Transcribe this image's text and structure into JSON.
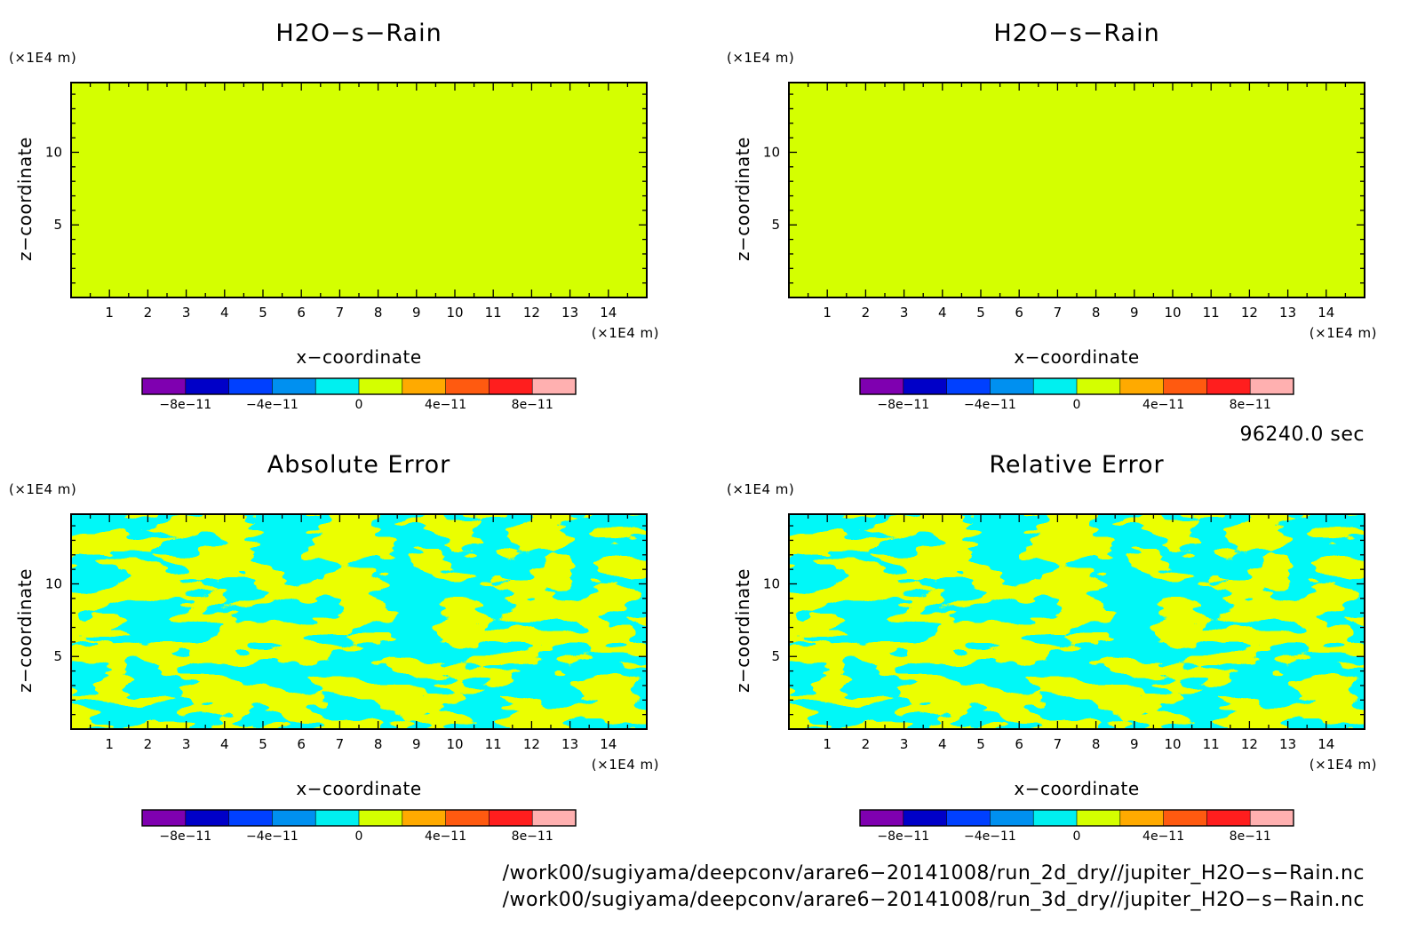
{
  "chart_data": [
    {
      "type": "heatmap",
      "title": "H2O−s−Rain",
      "xlabel": "x−coordinate",
      "ylabel": "z−coordinate",
      "x_unit": "(×1E4 m)",
      "y_unit": "(×1E4 m)",
      "xlim": [
        0,
        15
      ],
      "ylim": [
        0,
        14.8
      ],
      "x_ticks": [
        "1",
        "2",
        "3",
        "4",
        "5",
        "6",
        "7",
        "8",
        "9",
        "10",
        "11",
        "12",
        "13",
        "14"
      ],
      "y_ticks": [
        "5",
        "10"
      ],
      "field": "uniform",
      "field_value": 0,
      "colorbar": {
        "colors": [
          "#7f00b0",
          "#0000c8",
          "#0040ff",
          "#0090f0",
          "#00f0f0",
          "#d4ff00",
          "#ffaa00",
          "#ff5a10",
          "#ff1e1e",
          "#ffb0b0"
        ],
        "bounds": [
          -1e-10,
          1e-10
        ],
        "labels": [
          "−8e−11",
          "−4e−11",
          "0",
          "4e−11",
          "8e−11"
        ]
      }
    },
    {
      "type": "heatmap",
      "title": "H2O−s−Rain",
      "xlabel": "x−coordinate",
      "ylabel": "z−coordinate",
      "x_unit": "(×1E4 m)",
      "y_unit": "(×1E4 m)",
      "xlim": [
        0,
        15
      ],
      "ylim": [
        0,
        14.8
      ],
      "x_ticks": [
        "1",
        "2",
        "3",
        "4",
        "5",
        "6",
        "7",
        "8",
        "9",
        "10",
        "11",
        "12",
        "13",
        "14"
      ],
      "y_ticks": [
        "5",
        "10"
      ],
      "field": "uniform",
      "field_value": 0,
      "colorbar": {
        "colors": [
          "#7f00b0",
          "#0000c8",
          "#0040ff",
          "#0090f0",
          "#00f0f0",
          "#d4ff00",
          "#ffaa00",
          "#ff5a10",
          "#ff1e1e",
          "#ffb0b0"
        ],
        "bounds": [
          -1e-10,
          1e-10
        ],
        "labels": [
          "−8e−11",
          "−4e−11",
          "0",
          "4e−11",
          "8e−11"
        ]
      }
    },
    {
      "type": "heatmap",
      "title": "Absolute Error",
      "xlabel": "x−coordinate",
      "ylabel": "z−coordinate",
      "x_unit": "(×1E4 m)",
      "y_unit": "(×1E4 m)",
      "xlim": [
        0,
        15
      ],
      "ylim": [
        0,
        14.8
      ],
      "x_ticks": [
        "1",
        "2",
        "3",
        "4",
        "5",
        "6",
        "7",
        "8",
        "9",
        "10",
        "11",
        "12",
        "13",
        "14"
      ],
      "y_ticks": [
        "5",
        "10"
      ],
      "field": "noise",
      "field_values": [
        0,
        -1e-11
      ],
      "colorbar": {
        "colors": [
          "#7f00b0",
          "#0000c8",
          "#0040ff",
          "#0090f0",
          "#00f0f0",
          "#d4ff00",
          "#ffaa00",
          "#ff5a10",
          "#ff1e1e",
          "#ffb0b0"
        ],
        "bounds": [
          -1e-10,
          1e-10
        ],
        "labels": [
          "−8e−11",
          "−4e−11",
          "0",
          "4e−11",
          "8e−11"
        ]
      }
    },
    {
      "type": "heatmap",
      "title": "Relative Error",
      "xlabel": "x−coordinate",
      "ylabel": "z−coordinate",
      "x_unit": "(×1E4 m)",
      "y_unit": "(×1E4 m)",
      "xlim": [
        0,
        15
      ],
      "ylim": [
        0,
        14.8
      ],
      "x_ticks": [
        "1",
        "2",
        "3",
        "4",
        "5",
        "6",
        "7",
        "8",
        "9",
        "10",
        "11",
        "12",
        "13",
        "14"
      ],
      "y_ticks": [
        "5",
        "10"
      ],
      "field": "noise",
      "field_values": [
        0,
        -1e-11
      ],
      "colorbar": {
        "colors": [
          "#7f00b0",
          "#0000c8",
          "#0040ff",
          "#0090f0",
          "#00f0f0",
          "#d4ff00",
          "#ffaa00",
          "#ff5a10",
          "#ff1e1e",
          "#ffb0b0"
        ],
        "bounds": [
          -1e-10,
          1e-10
        ],
        "labels": [
          "−8e−11",
          "−4e−11",
          "0",
          "4e−11",
          "8e−11"
        ]
      }
    }
  ],
  "time_label": "96240.0 sec",
  "files": [
    "/work00/sugiyama/deepconv/arare6−20141008/run_2d_dry//jupiter_H2O−s−Rain.nc",
    "/work00/sugiyama/deepconv/arare6−20141008/run_3d_dry//jupiter_H2O−s−Rain.nc"
  ]
}
